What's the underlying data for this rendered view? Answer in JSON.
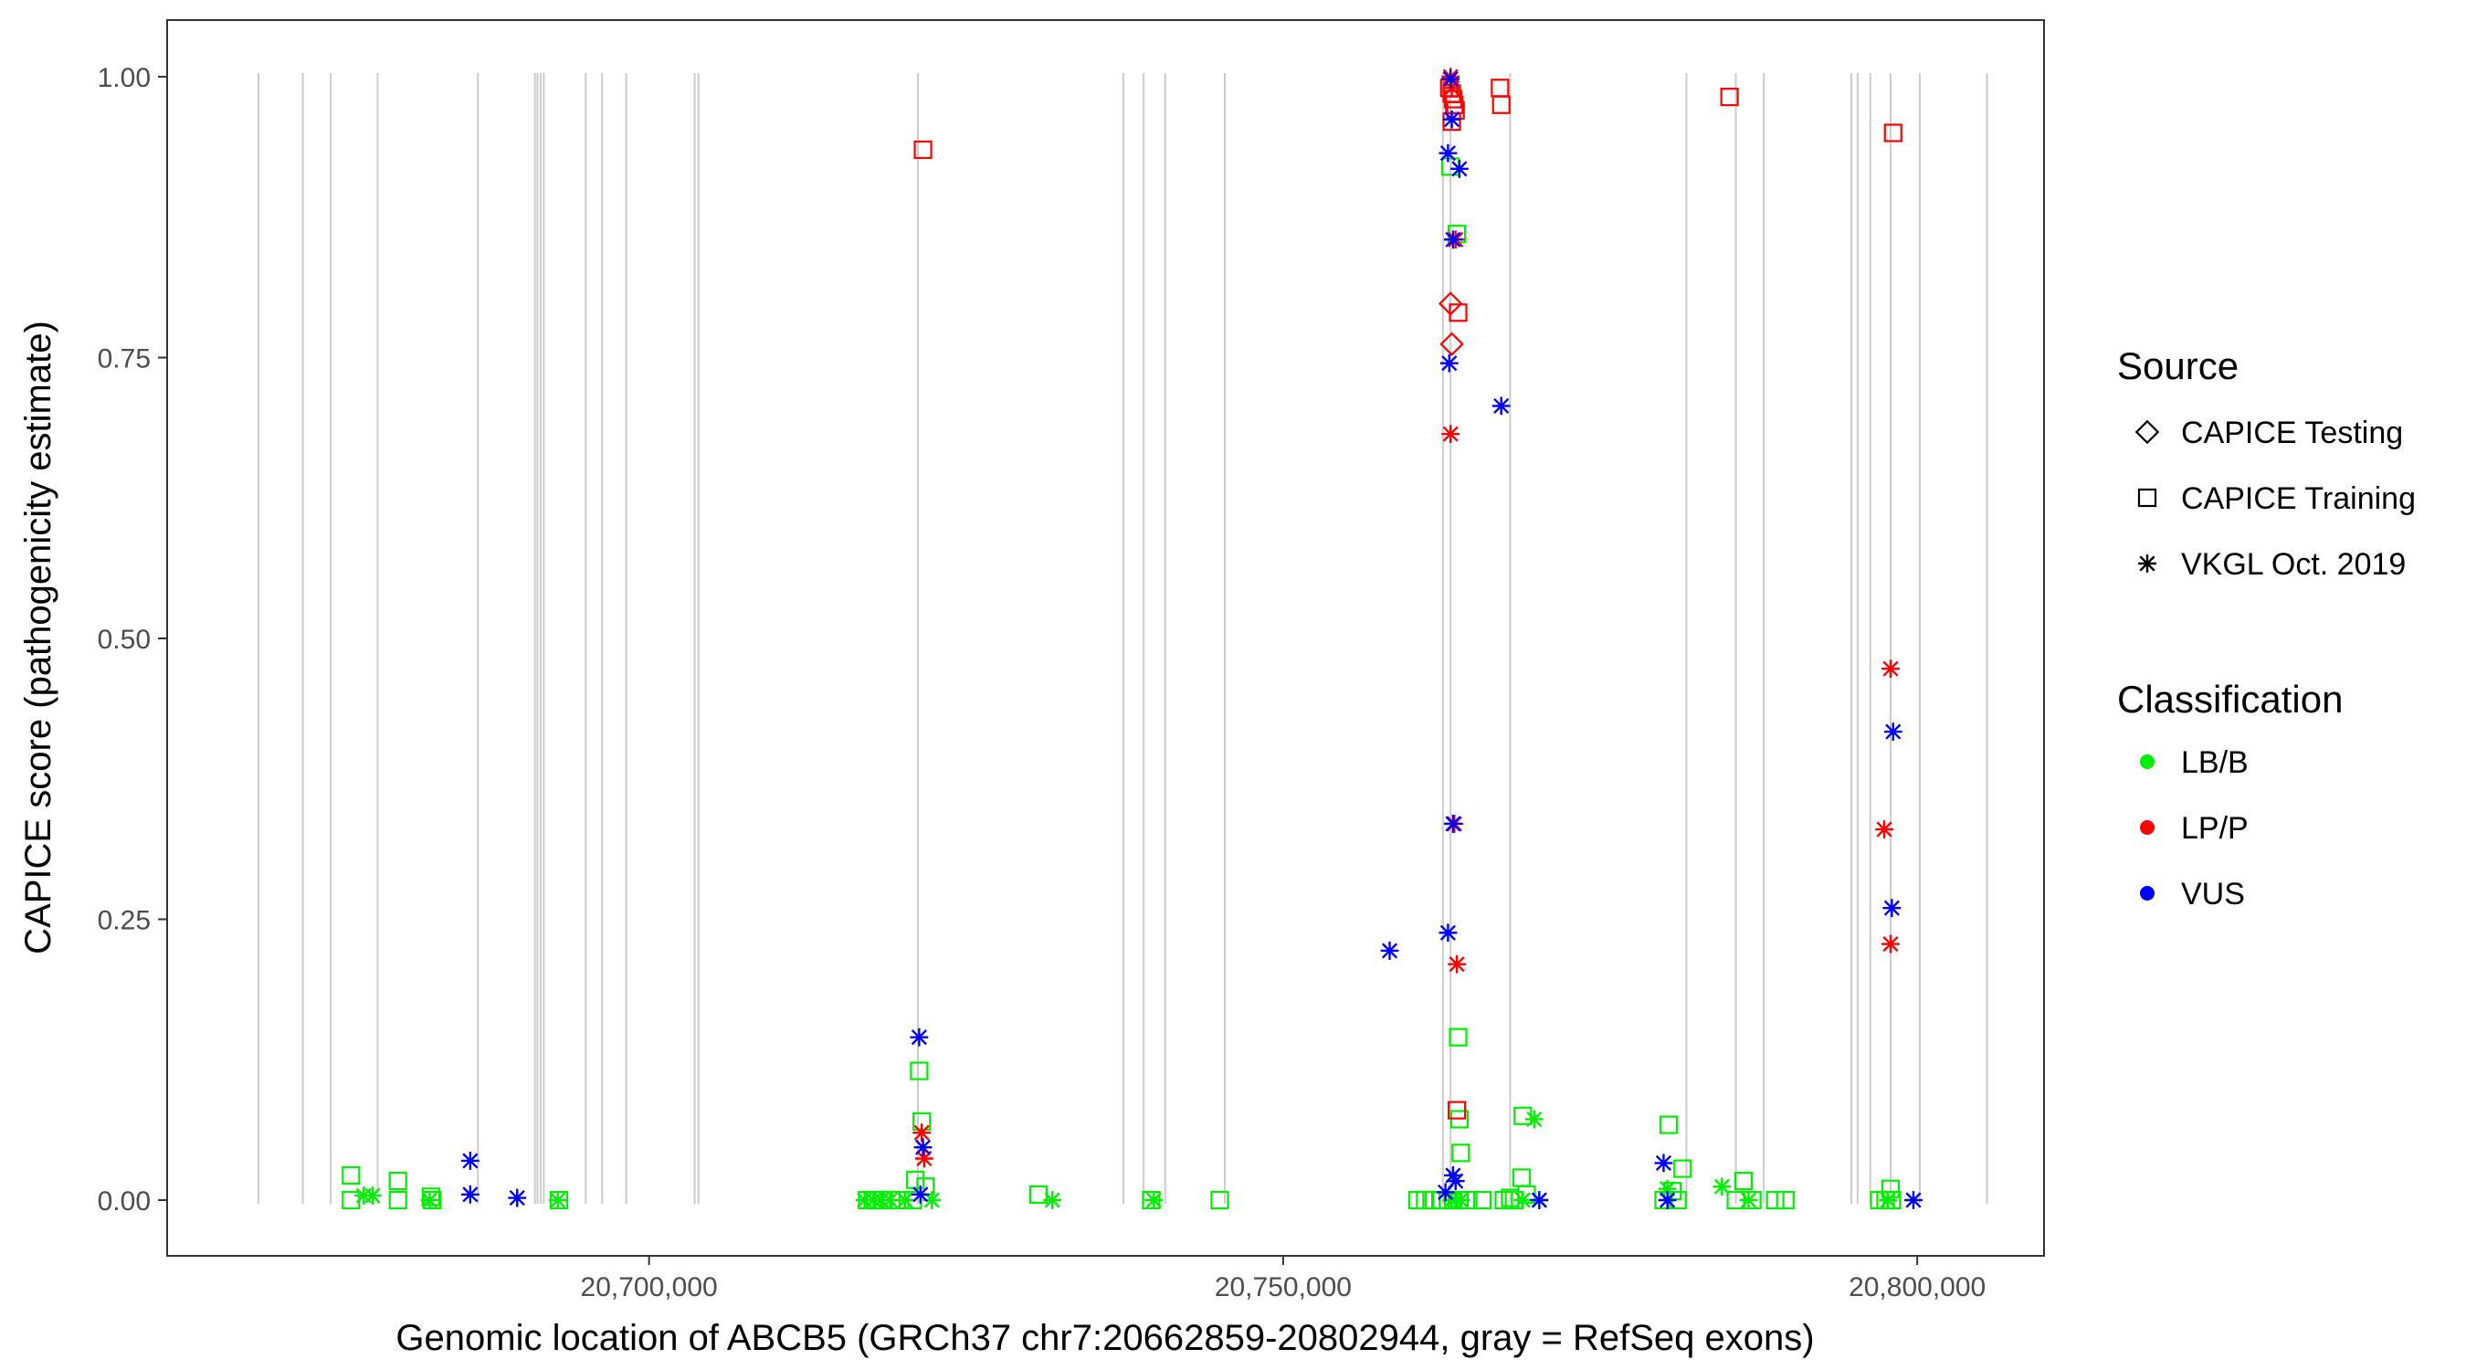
{
  "chart_data": {
    "type": "scatter",
    "xlabel": "Genomic location of ABCB5 (GRCh37 chr7:20662859-20802944, gray = RefSeq exons)",
    "ylabel": "CAPICE score (pathogenicity estimate)",
    "xlim": [
      20662859,
      20802944
    ],
    "ylim": [
      0,
      1
    ],
    "x_ticks": [
      20700000,
      20750000,
      20800000
    ],
    "x_tick_labels": [
      "20,700,000",
      "20,750,000",
      "20,800,000"
    ],
    "y_ticks": [
      0,
      0.25,
      0.5,
      0.75,
      1.0
    ],
    "y_tick_labels": [
      "0.00",
      "0.25",
      "0.50",
      "0.75",
      "1.00"
    ],
    "grid": false,
    "exon_positions": [
      20669200,
      20672700,
      20674900,
      20678600,
      20686500,
      20691000,
      20691200,
      20691450,
      20691700,
      20695000,
      20696300,
      20698200,
      20703600,
      20703900,
      20721200,
      20737400,
      20739000,
      20740700,
      20745400,
      20762600,
      20763200,
      20767900,
      20781800,
      20785700,
      20787900,
      20794800,
      20795300,
      20796300,
      20797900,
      20800200,
      20805500
    ],
    "legend": {
      "placement": "right",
      "source": {
        "title": "Source",
        "entries": [
          {
            "label": "CAPICE Testing",
            "shape": "diamond"
          },
          {
            "label": "CAPICE Training",
            "shape": "square"
          },
          {
            "label": "VKGL Oct. 2019",
            "shape": "asterisk"
          }
        ]
      },
      "classification": {
        "title": "Classification",
        "entries": [
          {
            "label": "LB/B",
            "color": "#00ee00"
          },
          {
            "label": "LP/P",
            "color": "#ff0000"
          },
          {
            "label": "VUS",
            "color": "#0000ff"
          }
        ]
      }
    },
    "series": [
      {
        "source": "CAPICE Training",
        "classification": "LB/B",
        "shape": "square",
        "color": "#00ee00",
        "points": [
          [
            20676500,
            0.022
          ],
          [
            20676500,
            0.0
          ],
          [
            20680200,
            0.017
          ],
          [
            20680200,
            0.0
          ],
          [
            20682800,
            0.003
          ],
          [
            20682900,
            0.0
          ],
          [
            20692900,
            0.0
          ],
          [
            20717200,
            0.0
          ],
          [
            20717800,
            0.0
          ],
          [
            20718500,
            0.0
          ],
          [
            20719100,
            0.0
          ],
          [
            20719800,
            0.0
          ],
          [
            20720800,
            0.0
          ],
          [
            20721300,
            0.115
          ],
          [
            20721500,
            0.07
          ],
          [
            20721800,
            0.012
          ],
          [
            20721000,
            0.018
          ],
          [
            20730700,
            0.005
          ],
          [
            20739600,
            0.0
          ],
          [
            20745000,
            0.0
          ],
          [
            20760600,
            0.0
          ],
          [
            20761200,
            0.0
          ],
          [
            20761700,
            0.0
          ],
          [
            20762400,
            0.0
          ],
          [
            20763000,
            0.0
          ],
          [
            20763400,
            0.0
          ],
          [
            20763900,
            0.0
          ],
          [
            20764600,
            0.0
          ],
          [
            20765700,
            0.0
          ],
          [
            20763200,
            0.92
          ],
          [
            20763700,
            0.86
          ],
          [
            20763800,
            0.145
          ],
          [
            20763900,
            0.072
          ],
          [
            20764000,
            0.042
          ],
          [
            20767400,
            0.0
          ],
          [
            20767900,
            0.002
          ],
          [
            20768800,
            0.02
          ],
          [
            20768900,
            0.075
          ],
          [
            20768200,
            0.0
          ],
          [
            20769200,
            0.005
          ],
          [
            20780000,
            0.0
          ],
          [
            20780400,
            0.067
          ],
          [
            20781100,
            0.0
          ],
          [
            20781500,
            0.028
          ],
          [
            20780700,
            0.008
          ],
          [
            20785700,
            0.0
          ],
          [
            20786300,
            0.017
          ],
          [
            20787000,
            0.0
          ],
          [
            20788800,
            0.0
          ],
          [
            20789600,
            0.0
          ],
          [
            20797000,
            0.0
          ],
          [
            20797500,
            0.0
          ],
          [
            20797900,
            0.01
          ],
          [
            20798000,
            0.0
          ]
        ]
      },
      {
        "source": "VKGL Oct. 2019",
        "classification": "LB/B",
        "shape": "asterisk",
        "color": "#00ee00",
        "points": [
          [
            20677500,
            0.004
          ],
          [
            20678200,
            0.004
          ],
          [
            20682700,
            0.0
          ],
          [
            20692800,
            0.0
          ],
          [
            20717000,
            0.0
          ],
          [
            20717700,
            0.0
          ],
          [
            20718300,
            0.0
          ],
          [
            20719000,
            0.0
          ],
          [
            20720200,
            0.0
          ],
          [
            20722300,
            0.0
          ],
          [
            20731800,
            0.0
          ],
          [
            20739800,
            0.0
          ],
          [
            20763300,
            0.0
          ],
          [
            20764000,
            0.0
          ],
          [
            20768900,
            0.0
          ],
          [
            20769800,
            0.072
          ],
          [
            20770200,
            0.0
          ],
          [
            20780300,
            0.01
          ],
          [
            20784600,
            0.012
          ],
          [
            20786700,
            0.0
          ],
          [
            20797700,
            0.0
          ]
        ]
      },
      {
        "source": "CAPICE Training",
        "classification": "LP/P",
        "shape": "square",
        "color": "#ff0000",
        "points": [
          [
            20721600,
            0.935
          ],
          [
            20763100,
            0.99
          ],
          [
            20763300,
            0.985
          ],
          [
            20763400,
            0.98
          ],
          [
            20763500,
            0.975
          ],
          [
            20763600,
            0.97
          ],
          [
            20763300,
            0.96
          ],
          [
            20763800,
            0.79
          ],
          [
            20763700,
            0.08
          ],
          [
            20767100,
            0.99
          ],
          [
            20767200,
            0.975
          ],
          [
            20785200,
            0.982
          ],
          [
            20798100,
            0.95
          ]
        ]
      },
      {
        "source": "CAPICE Testing",
        "classification": "LP/P",
        "shape": "diamond",
        "color": "#ff0000",
        "points": [
          [
            20763200,
            0.798
          ],
          [
            20763300,
            0.762
          ]
        ]
      },
      {
        "source": "VKGL Oct. 2019",
        "classification": "LP/P",
        "shape": "asterisk",
        "color": "#ff0000",
        "points": [
          [
            20763200,
            1.0
          ],
          [
            20763300,
            0.99
          ],
          [
            20763600,
            0.855
          ],
          [
            20763200,
            0.682
          ],
          [
            20763500,
            0.335
          ],
          [
            20763700,
            0.21
          ],
          [
            20721500,
            0.06
          ],
          [
            20721700,
            0.037
          ],
          [
            20797400,
            0.33
          ],
          [
            20797900,
            0.473
          ],
          [
            20797900,
            0.228
          ]
        ]
      },
      {
        "source": "VKGL Oct. 2019",
        "classification": "VUS",
        "shape": "asterisk",
        "color": "#0000ff",
        "points": [
          [
            20685900,
            0.035
          ],
          [
            20685900,
            0.005
          ],
          [
            20689600,
            0.002
          ],
          [
            20721300,
            0.145
          ],
          [
            20721600,
            0.047
          ],
          [
            20721400,
            0.005
          ],
          [
            20763200,
            0.998
          ],
          [
            20763300,
            0.962
          ],
          [
            20763000,
            0.932
          ],
          [
            20763900,
            0.918
          ],
          [
            20763400,
            0.855
          ],
          [
            20763100,
            0.745
          ],
          [
            20767200,
            0.707
          ],
          [
            20763400,
            0.335
          ],
          [
            20763000,
            0.238
          ],
          [
            20758400,
            0.222
          ],
          [
            20763400,
            0.022
          ],
          [
            20763600,
            0.017
          ],
          [
            20762800,
            0.007
          ],
          [
            20770200,
            0.0
          ],
          [
            20780000,
            0.033
          ],
          [
            20780300,
            0.0
          ],
          [
            20798100,
            0.417
          ],
          [
            20798000,
            0.26
          ],
          [
            20799700,
            0.0
          ]
        ]
      }
    ]
  }
}
